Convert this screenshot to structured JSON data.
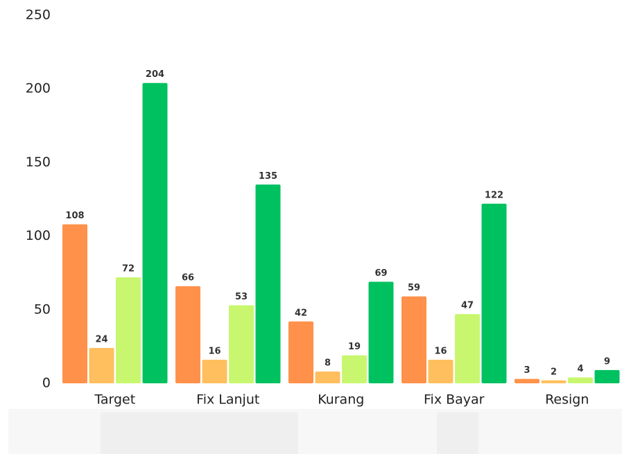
{
  "chart_data": {
    "type": "bar",
    "categories": [
      "Target",
      "Fix Lanjut",
      "Kurang",
      "Fix Bayar",
      "Resign"
    ],
    "series": [
      {
        "color": "#ff914a",
        "values": [
          108,
          66,
          42,
          59,
          3
        ]
      },
      {
        "color": "#ffbf5e",
        "values": [
          24,
          16,
          8,
          16,
          2
        ]
      },
      {
        "color": "#c8f76f",
        "values": [
          72,
          53,
          19,
          47,
          4
        ]
      },
      {
        "color": "#00c160",
        "values": [
          204,
          135,
          69,
          122,
          9
        ]
      }
    ],
    "ylim": [
      0,
      250
    ],
    "yticks": [
      0,
      50,
      100,
      150,
      200,
      250
    ],
    "grid": false
  }
}
